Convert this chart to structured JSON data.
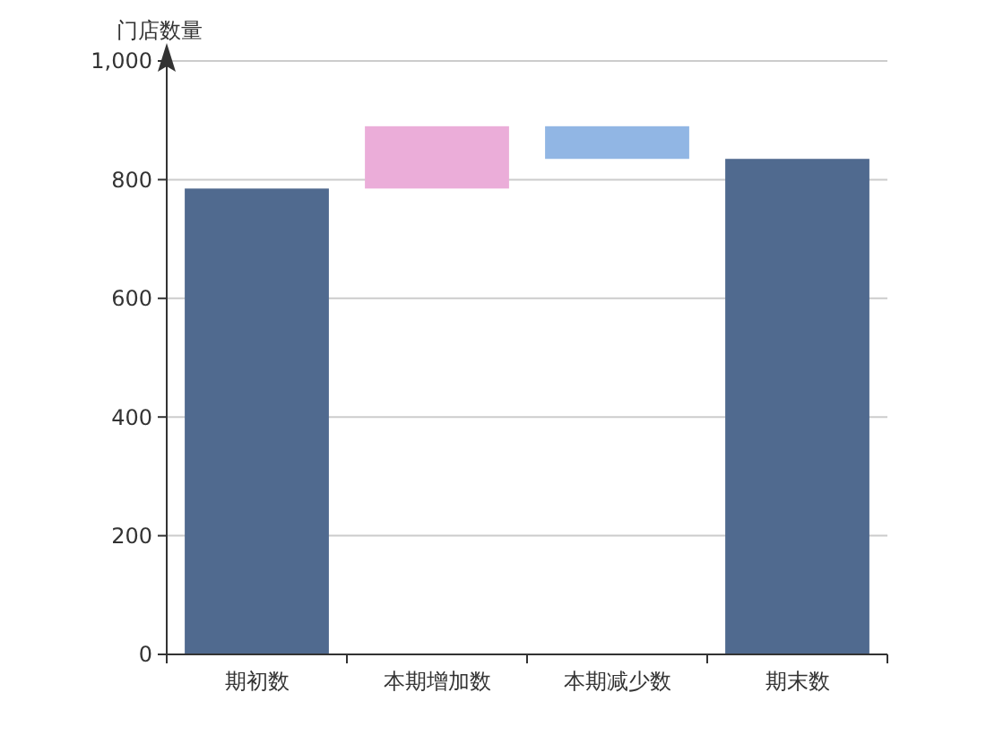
{
  "chart_data": {
    "type": "bar",
    "ylabel": "门店数量",
    "categories": [
      "期初数",
      "本期增加数",
      "本期减少数",
      "期末数"
    ],
    "values": [
      785,
      105,
      55,
      835
    ],
    "base": [
      0,
      785,
      835,
      0
    ],
    "colors": [
      "#506a8f",
      "#ebadd9",
      "#91b6e4",
      "#506a8f"
    ],
    "ylim": [
      0,
      1000
    ],
    "yticks": [
      0,
      200,
      400,
      600,
      800,
      {
        "value": 1000,
        "label": "1,000"
      }
    ],
    "grid": "y"
  }
}
